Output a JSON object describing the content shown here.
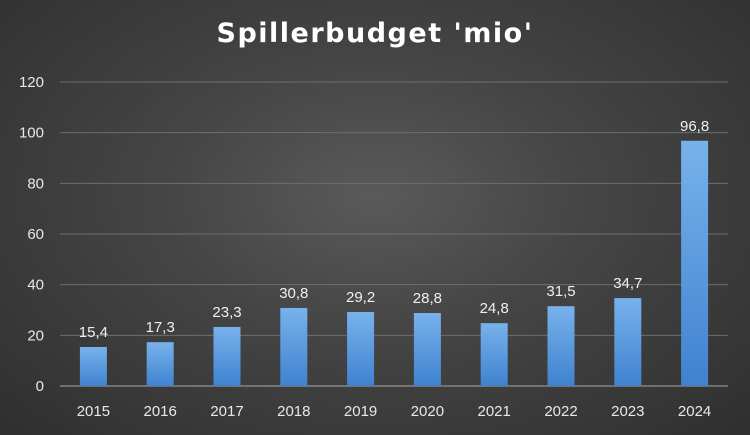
{
  "chart_data": {
    "type": "bar",
    "title": "Spillerbudget 'mio'",
    "categories": [
      "2015",
      "2016",
      "2017",
      "2018",
      "2019",
      "2020",
      "2021",
      "2022",
      "2023",
      "2024"
    ],
    "values": [
      15.4,
      17.3,
      23.3,
      30.8,
      29.2,
      28.8,
      24.8,
      31.5,
      34.7,
      96.8
    ],
    "data_labels": [
      "15,4",
      "17,3",
      "23,3",
      "30,8",
      "29,2",
      "28,8",
      "24,8",
      "31,5",
      "34,7",
      "96,8"
    ],
    "ylim": [
      0,
      120
    ],
    "yticks": [
      0,
      20,
      40,
      60,
      80,
      100,
      120
    ],
    "grid": true,
    "legend": "none",
    "bar_color": "#4a8fd9"
  }
}
